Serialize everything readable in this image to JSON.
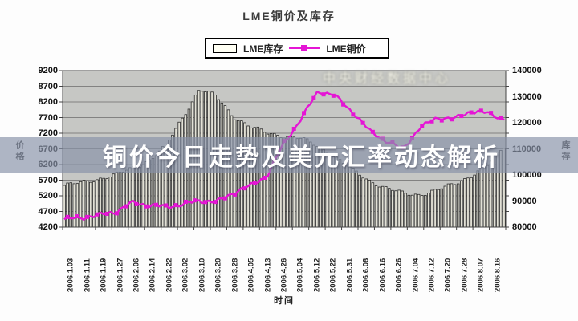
{
  "header": {
    "title": "LME铜价及库存"
  },
  "legend": {
    "items": [
      {
        "label": "LME库存",
        "swatch": "bar-swatch",
        "fill": "#fffff4",
        "border": "#000000"
      },
      {
        "label": "LME铜价",
        "swatch": "line-swatch",
        "color": "#e515d5"
      }
    ]
  },
  "overlay": {
    "headline": "铜价今日走势及美元汇率动态解析",
    "watermark": "中央财经数据中心"
  },
  "chart_data": {
    "type": "bar+line (dual axis)",
    "title": "LME铜价及库存",
    "xlabel": "时间",
    "x_categories": [
      "2006.1.03",
      "2006.1.11",
      "2006.1.19",
      "2006.1.27",
      "2006.2.06",
      "2006.2.14",
      "2006.2.22",
      "2006.3.02",
      "2006.3.10",
      "2006.3.20",
      "2006.3.28",
      "2006.4.05",
      "2006.4.13",
      "2006.4.26",
      "2006.5.04",
      "2006.5.12",
      "2006.5.22",
      "2006.5.31",
      "2006.6.08",
      "2006.6.16",
      "2006.6.26",
      "2006.7.04",
      "2006.7.12",
      "2006.7.20",
      "2006.7.28",
      "2006.8.07",
      "2006.8.16"
    ],
    "series": [
      {
        "name": "LME库存",
        "type": "bar",
        "axis": "right",
        "fill": "#e2e1d6",
        "border": "#2b2b2b",
        "values": [
          96000,
          97000,
          98500,
          100000,
          102500,
          105500,
          111000,
          122000,
          133000,
          130000,
          122500,
          118500,
          116000,
          115000,
          114000,
          111000,
          107000,
          102000,
          98000,
          95000,
          93000,
          92500,
          94000,
          96500,
          99500,
          103500,
          111000
        ]
      },
      {
        "name": "LME铜价",
        "type": "line",
        "axis": "left",
        "color": "#e515d5",
        "marker": "square",
        "values": [
          4450,
          4500,
          4580,
          4680,
          4980,
          4900,
          4850,
          4920,
          5050,
          5000,
          5300,
          5520,
          5850,
          6900,
          7650,
          8550,
          8400,
          7900,
          7300,
          6950,
          6700,
          7350,
          7700,
          7650,
          7900,
          7850,
          7650
        ]
      }
    ],
    "left_axis": {
      "title": "价格",
      "min": 4200,
      "max": 9200,
      "step": 500,
      "ticks": [
        "9200",
        "8700",
        "8200",
        "7700",
        "7200",
        "6700",
        "6200",
        "5700",
        "5200",
        "4700",
        "4200"
      ]
    },
    "right_axis": {
      "title": "库存",
      "min": 80000,
      "max": 140000,
      "step": 10000,
      "ticks": [
        "140000",
        "130000",
        "120000",
        "110000",
        "100000",
        "90000",
        "80000"
      ]
    },
    "grid": true,
    "legend_position": "top",
    "plot_bg": "#c6c7c4",
    "grid_color": "#6b6b6b"
  }
}
